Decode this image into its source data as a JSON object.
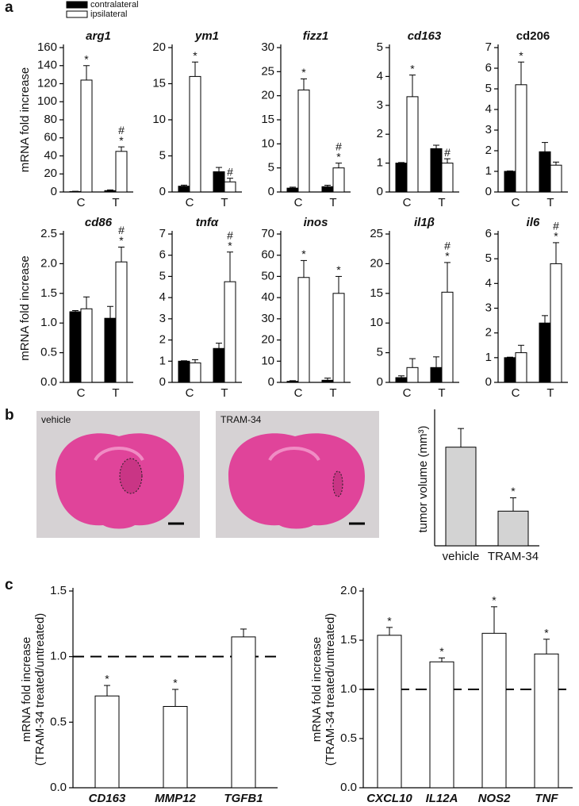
{
  "panel_labels": [
    "a",
    "b",
    "c"
  ],
  "images": [
    "vehicle",
    "TRAM-34"
  ],
  "chart_data": [
    {
      "type": "bar",
      "title": "arg1",
      "ylabel": "mRNA fold increase",
      "categories": [
        "C",
        "T"
      ],
      "ylim": [
        0,
        160
      ],
      "yticks": [
        0,
        20,
        40,
        60,
        80,
        100,
        120,
        140,
        160
      ],
      "series": [
        {
          "name": "contralateral",
          "color": "#000000",
          "values": [
            0.5,
            1.5
          ],
          "errors": [
            0.3,
            0.8
          ],
          "marks": [
            [],
            []
          ]
        },
        {
          "name": "ipsilateral",
          "color": "#ffffff",
          "values": [
            124,
            45
          ],
          "errors": [
            16,
            5
          ],
          "marks": [
            [
              "*"
            ],
            [
              "#",
              "*"
            ]
          ]
        }
      ]
    },
    {
      "type": "bar",
      "title": "ym1",
      "categories": [
        "C",
        "T"
      ],
      "ylim": [
        0,
        20
      ],
      "yticks": [
        0,
        5,
        10,
        15,
        20
      ],
      "series": [
        {
          "color": "#000000",
          "values": [
            0.8,
            2.8
          ],
          "errors": [
            0.15,
            0.6
          ],
          "marks": [
            [],
            []
          ]
        },
        {
          "color": "#ffffff",
          "values": [
            16,
            1.4
          ],
          "errors": [
            2,
            0.5
          ],
          "marks": [
            [
              "*"
            ],
            [
              "#"
            ]
          ]
        }
      ]
    },
    {
      "type": "bar",
      "title": "fizz1",
      "categories": [
        "C",
        "T"
      ],
      "ylim": [
        0,
        30
      ],
      "yticks": [
        0,
        5,
        10,
        15,
        20,
        25,
        30
      ],
      "series": [
        {
          "color": "#000000",
          "values": [
            0.8,
            1.1
          ],
          "errors": [
            0.2,
            0.3
          ],
          "marks": [
            [],
            []
          ]
        },
        {
          "color": "#ffffff",
          "values": [
            21.2,
            5
          ],
          "errors": [
            2.3,
            1
          ],
          "marks": [
            [
              "*"
            ],
            [
              "#",
              "*"
            ]
          ]
        }
      ]
    },
    {
      "type": "bar",
      "title": "cd163",
      "categories": [
        "C",
        "T"
      ],
      "ylim": [
        0,
        5
      ],
      "yticks": [
        0,
        1,
        2,
        3,
        4,
        5
      ],
      "series": [
        {
          "color": "#000000",
          "values": [
            1.0,
            1.5
          ],
          "errors": [
            0.02,
            0.12
          ],
          "marks": [
            [],
            []
          ]
        },
        {
          "color": "#ffffff",
          "values": [
            3.3,
            1.0
          ],
          "errors": [
            0.75,
            0.15
          ],
          "marks": [
            [
              "*"
            ],
            [
              "#"
            ]
          ]
        }
      ]
    },
    {
      "type": "bar",
      "title": "cd206",
      "categories": [
        "C",
        "T"
      ],
      "ylim": [
        0,
        7
      ],
      "yticks": [
        0,
        1,
        2,
        3,
        4,
        5,
        6,
        7
      ],
      "series": [
        {
          "color": "#000000",
          "values": [
            1.0,
            1.95
          ],
          "errors": [
            0.02,
            0.45
          ],
          "marks": [
            [],
            []
          ]
        },
        {
          "color": "#ffffff",
          "values": [
            5.2,
            1.3
          ],
          "errors": [
            1.1,
            0.15
          ],
          "marks": [
            [
              "*"
            ],
            []
          ]
        }
      ]
    },
    {
      "type": "bar",
      "title": "cd86",
      "ylabel": "mRNA fold increase",
      "categories": [
        "C",
        "T"
      ],
      "ylim": [
        0,
        2.5
      ],
      "yticks": [
        {
          "value": 0,
          "label": "0.0"
        },
        0.5,
        {
          "value": 1,
          "label": "1.0"
        },
        1.5,
        {
          "value": 2,
          "label": "2.0"
        },
        2.5
      ],
      "series": [
        {
          "color": "#000000",
          "values": [
            1.19,
            1.08
          ],
          "errors": [
            0.02,
            0.2
          ],
          "marks": [
            [],
            []
          ]
        },
        {
          "color": "#ffffff",
          "values": [
            1.24,
            2.03
          ],
          "errors": [
            0.2,
            0.25
          ],
          "marks": [
            [],
            [
              "#",
              "*"
            ]
          ]
        }
      ]
    },
    {
      "type": "bar",
      "title": "tnfα",
      "categories": [
        "C",
        "T"
      ],
      "ylim": [
        0,
        7
      ],
      "yticks": [
        0,
        1,
        2,
        3,
        4,
        5,
        6,
        7
      ],
      "series": [
        {
          "color": "#000000",
          "values": [
            1.0,
            1.6
          ],
          "errors": [
            0.02,
            0.25
          ],
          "marks": [
            [],
            []
          ]
        },
        {
          "color": "#ffffff",
          "values": [
            0.92,
            4.75
          ],
          "errors": [
            0.15,
            1.4
          ],
          "marks": [
            [],
            [
              "#",
              "*"
            ]
          ]
        }
      ]
    },
    {
      "type": "bar",
      "title": "inos",
      "categories": [
        "C",
        "T"
      ],
      "ylim": [
        0,
        70
      ],
      "yticks": [
        0,
        10,
        20,
        30,
        40,
        50,
        60,
        70
      ],
      "series": [
        {
          "color": "#000000",
          "values": [
            0.5,
            1
          ],
          "errors": [
            0.3,
            1
          ],
          "marks": [
            [],
            []
          ]
        },
        {
          "color": "#ffffff",
          "values": [
            49.5,
            42
          ],
          "errors": [
            8,
            8
          ],
          "marks": [
            [
              "*"
            ],
            [
              "*"
            ]
          ]
        }
      ]
    },
    {
      "type": "bar",
      "title": "il1β",
      "categories": [
        "C",
        "T"
      ],
      "ylim": [
        0,
        25
      ],
      "yticks": [
        0,
        5,
        10,
        15,
        20,
        25
      ],
      "series": [
        {
          "color": "#000000",
          "values": [
            0.8,
            2.5
          ],
          "errors": [
            0.3,
            1.8
          ],
          "marks": [
            [],
            []
          ]
        },
        {
          "color": "#ffffff",
          "values": [
            2.5,
            15.2
          ],
          "errors": [
            1.5,
            5
          ],
          "marks": [
            [],
            [
              "#",
              "*"
            ]
          ]
        }
      ]
    },
    {
      "type": "bar",
      "title": "il6",
      "categories": [
        "C",
        "T"
      ],
      "ylim": [
        0,
        6
      ],
      "yticks": [
        0,
        1,
        2,
        3,
        4,
        5,
        6
      ],
      "series": [
        {
          "color": "#000000",
          "values": [
            1.0,
            2.4
          ],
          "errors": [
            0.02,
            0.3
          ],
          "marks": [
            [],
            []
          ]
        },
        {
          "color": "#ffffff",
          "values": [
            1.2,
            4.8
          ],
          "errors": [
            0.3,
            0.85
          ],
          "marks": [
            [],
            [
              "#",
              "*"
            ]
          ]
        }
      ]
    },
    {
      "type": "bar",
      "ylabel": "tumor volume (mm³)",
      "categories": [
        "vehicle",
        "TRAM-34"
      ],
      "ylim": [
        0,
        5
      ],
      "series": [
        {
          "color": "#d3d3d3",
          "values": [
            3.7,
            1.3
          ],
          "errors": [
            0.7,
            0.5
          ],
          "marks": [
            [],
            [
              "*"
            ]
          ]
        }
      ]
    },
    {
      "type": "bar",
      "ylabel": [
        "mRNA fold increase",
        "(TRAM-34 treated/untreated)"
      ],
      "categories": [
        "CD163",
        "MMP12",
        "TGFB1"
      ],
      "ylim": [
        0,
        1.5
      ],
      "yticks": [
        {
          "value": 0,
          "label": "0.0"
        },
        0.5,
        {
          "value": 1,
          "label": "1.0"
        },
        1.5
      ],
      "refline": 1.0,
      "series": [
        {
          "color": "#ffffff",
          "values": [
            0.7,
            0.62,
            1.15
          ],
          "errors": [
            0.08,
            0.13,
            0.06
          ],
          "marks": [
            [
              "*"
            ],
            [
              "*"
            ],
            []
          ]
        }
      ]
    },
    {
      "type": "bar",
      "ylabel": [
        "mRNA fold increase",
        "(TRAM-34 treated/untreated)"
      ],
      "categories": [
        "CXCL10",
        "IL12A",
        "NOS2",
        "TNF"
      ],
      "ylim": [
        0,
        2
      ],
      "yticks": [
        {
          "value": 0,
          "label": "0.0"
        },
        0.5,
        {
          "value": 1,
          "label": "1.0"
        },
        1.5,
        {
          "value": 2,
          "label": "2.0"
        }
      ],
      "refline": 1.0,
      "series": [
        {
          "color": "#ffffff",
          "values": [
            1.55,
            1.28,
            1.57,
            1.36
          ],
          "errors": [
            0.08,
            0.04,
            0.27,
            0.15
          ],
          "marks": [
            [
              "*"
            ],
            [
              "*"
            ],
            [
              "*"
            ],
            [
              "*"
            ]
          ]
        }
      ]
    }
  ]
}
